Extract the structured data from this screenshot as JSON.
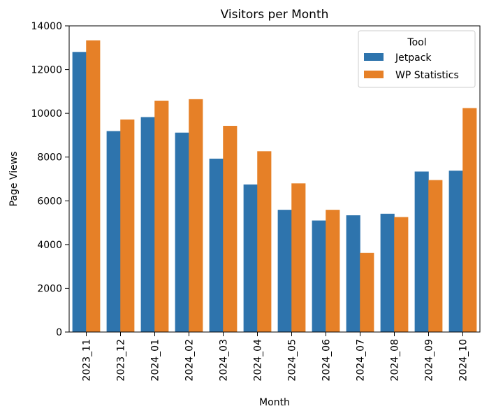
{
  "chart_data": {
    "type": "bar",
    "title": "Visitors per Month",
    "xlabel": "Month",
    "ylabel": "Page Views",
    "categories": [
      "2023_11",
      "2023_12",
      "2024_01",
      "2024_02",
      "2024_03",
      "2024_04",
      "2024_05",
      "2024_06",
      "2024_07",
      "2024_08",
      "2024_09",
      "2024_10"
    ],
    "series": [
      {
        "name": "Jetpack",
        "color": "#2e74ad",
        "values": [
          12800,
          9180,
          9820,
          9110,
          7920,
          6740,
          5580,
          5090,
          5330,
          5400,
          7330,
          7370
        ]
      },
      {
        "name": "WP Statistics",
        "color": "#e68027",
        "values": [
          13330,
          9710,
          10570,
          10640,
          9420,
          8260,
          6790,
          5580,
          3610,
          5250,
          6940,
          10230
        ]
      }
    ],
    "ylim": [
      0,
      14000
    ],
    "yticks": [
      0,
      2000,
      4000,
      6000,
      8000,
      10000,
      12000,
      14000
    ],
    "grid": false,
    "legend": {
      "title": "Tool",
      "placement": "top-right"
    }
  }
}
